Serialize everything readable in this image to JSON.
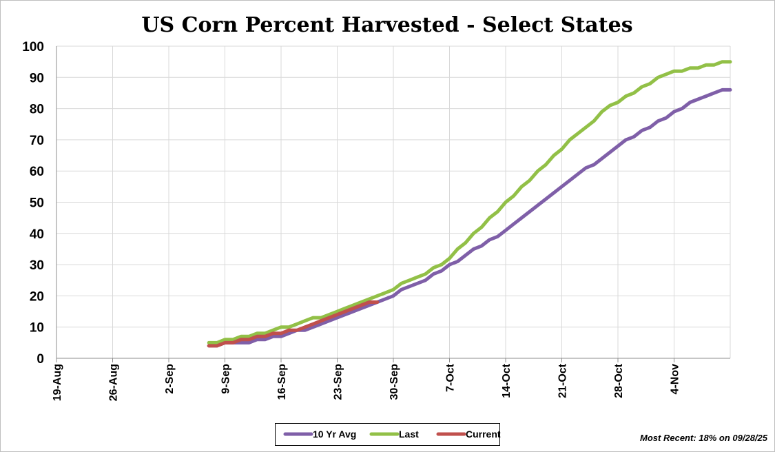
{
  "chart_data": {
    "type": "line",
    "title": "US Corn Percent Harvested - Select States",
    "xlabel": "",
    "ylabel": "",
    "ylim": [
      0,
      100
    ],
    "yticks": [
      "0",
      "10",
      "20",
      "30",
      "40",
      "50",
      "60",
      "70",
      "80",
      "90",
      "100"
    ],
    "x_axis": {
      "unit": "day_offset_from_19-Aug",
      "range": [
        0,
        84
      ],
      "tick_labels": [
        "19-Aug",
        "26-Aug",
        "2-Sep",
        "9-Sep",
        "16-Sep",
        "23-Sep",
        "30-Sep",
        "7-Oct",
        "14-Oct",
        "21-Oct",
        "28-Oct",
        "4-Nov"
      ],
      "tick_values": [
        0,
        7,
        14,
        21,
        28,
        35,
        42,
        49,
        56,
        63,
        70,
        77
      ]
    },
    "grid": true,
    "legend_position": "bottom-center",
    "series": [
      {
        "name": "10 Yr Avg",
        "color": "#7f5fa8",
        "x": [
          19,
          20,
          21,
          22,
          23,
          24,
          25,
          26,
          27,
          28,
          29,
          30,
          31,
          32,
          33,
          34,
          35,
          36,
          37,
          38,
          39,
          40,
          41,
          42,
          43,
          44,
          45,
          46,
          47,
          48,
          49,
          50,
          51,
          52,
          53,
          54,
          55,
          56,
          57,
          58,
          59,
          60,
          61,
          62,
          63,
          64,
          65,
          66,
          67,
          68,
          69,
          70,
          71,
          72,
          73,
          74,
          75,
          76,
          77,
          78,
          79,
          80,
          81,
          82,
          83,
          84
        ],
        "values": [
          4,
          4,
          5,
          5,
          5,
          5,
          6,
          6,
          7,
          7,
          8,
          9,
          9,
          10,
          11,
          12,
          13,
          14,
          15,
          16,
          17,
          18,
          19,
          20,
          22,
          23,
          24,
          25,
          27,
          28,
          30,
          31,
          33,
          35,
          36,
          38,
          39,
          41,
          43,
          45,
          47,
          49,
          51,
          53,
          55,
          57,
          59,
          61,
          62,
          64,
          66,
          68,
          70,
          71,
          73,
          74,
          76,
          77,
          79,
          80,
          82,
          83,
          84,
          85,
          86,
          86
        ]
      },
      {
        "name": "Last",
        "color": "#92c047",
        "x": [
          19,
          20,
          21,
          22,
          23,
          24,
          25,
          26,
          27,
          28,
          29,
          30,
          31,
          32,
          33,
          34,
          35,
          36,
          37,
          38,
          39,
          40,
          41,
          42,
          43,
          44,
          45,
          46,
          47,
          48,
          49,
          50,
          51,
          52,
          53,
          54,
          55,
          56,
          57,
          58,
          59,
          60,
          61,
          62,
          63,
          64,
          65,
          66,
          67,
          68,
          69,
          70,
          71,
          72,
          73,
          74,
          75,
          76,
          77,
          78,
          79,
          80,
          81,
          82,
          83,
          84
        ],
        "values": [
          5,
          5,
          6,
          6,
          7,
          7,
          8,
          8,
          9,
          10,
          10,
          11,
          12,
          13,
          13,
          14,
          15,
          16,
          17,
          18,
          19,
          20,
          21,
          22,
          24,
          25,
          26,
          27,
          29,
          30,
          32,
          35,
          37,
          40,
          42,
          45,
          47,
          50,
          52,
          55,
          57,
          60,
          62,
          65,
          67,
          70,
          72,
          74,
          76,
          79,
          81,
          82,
          84,
          85,
          87,
          88,
          90,
          91,
          92,
          92,
          93,
          93,
          94,
          94,
          95,
          95
        ]
      },
      {
        "name": "Current",
        "color": "#c0504d",
        "x": [
          19,
          20,
          21,
          22,
          23,
          24,
          25,
          26,
          27,
          28,
          29,
          30,
          31,
          32,
          33,
          34,
          35,
          36,
          37,
          38,
          39,
          40
        ],
        "values": [
          4,
          4,
          5,
          5,
          6,
          6,
          7,
          7,
          8,
          8,
          9,
          9,
          10,
          11,
          12,
          13,
          14,
          15,
          16,
          17,
          18,
          18
        ]
      }
    ],
    "note": "Most Recent: 18% on 09/28/25"
  }
}
